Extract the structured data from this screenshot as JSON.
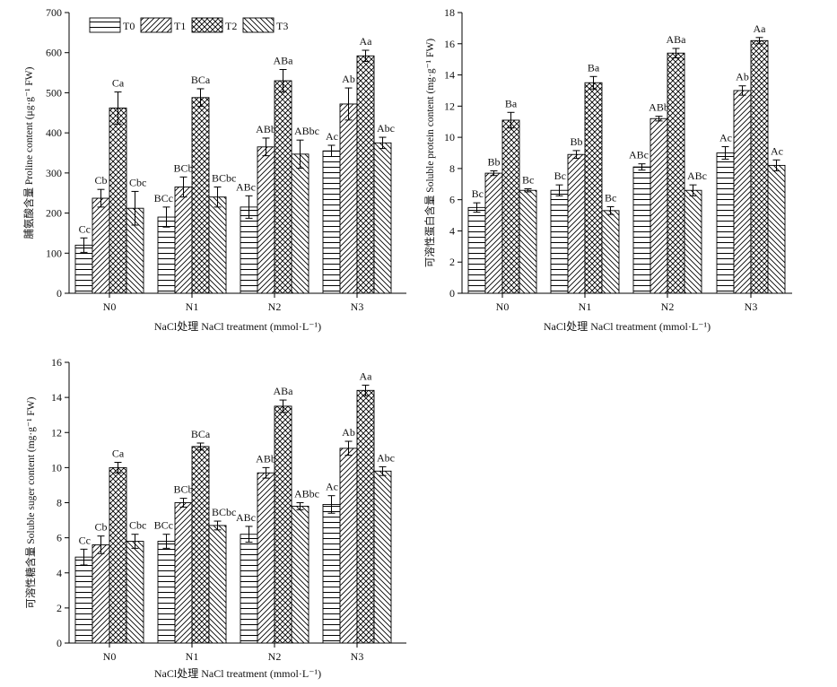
{
  "chart_data": [
    {
      "type": "bar",
      "categories": [
        "N0",
        "N1",
        "N2",
        "N3"
      ],
      "xlabel": "NaCl处理 NaCl treatment (mmol·L⁻¹)",
      "ylabel": "脯氨酸含量 Proline content (μg·g⁻¹ FW)",
      "ylim": [
        0,
        700
      ],
      "yticks": [
        0,
        100,
        200,
        300,
        400,
        500,
        600,
        700
      ],
      "legend": [
        "T0",
        "T1",
        "T2",
        "T3"
      ],
      "legend_position": "top-left",
      "series": [
        {
          "name": "T0",
          "values": [
            120,
            190,
            215,
            355
          ],
          "errors": [
            18,
            25,
            28,
            14
          ],
          "labels": [
            "Cc",
            "BCc",
            "ABc",
            "Ac"
          ]
        },
        {
          "name": "T1",
          "values": [
            237,
            265,
            365,
            472
          ],
          "errors": [
            22,
            25,
            22,
            40
          ],
          "labels": [
            "Cb",
            "BCb",
            "ABb",
            "Ab"
          ]
        },
        {
          "name": "T2",
          "values": [
            462,
            488,
            530,
            592
          ],
          "errors": [
            40,
            22,
            28,
            14
          ],
          "labels": [
            "Ca",
            "BCa",
            "ABa",
            "Aa"
          ]
        },
        {
          "name": "T3",
          "values": [
            212,
            240,
            347,
            375
          ],
          "errors": [
            42,
            25,
            35,
            14
          ],
          "labels": [
            "Cbc",
            "BCbc",
            "ABbc",
            "Abc"
          ]
        }
      ]
    },
    {
      "type": "bar",
      "categories": [
        "N0",
        "N1",
        "N2",
        "N3"
      ],
      "xlabel": "NaCl处理 NaCl treatment (mmol·L⁻¹)",
      "ylabel": "可溶性蛋白含量 Soluble protein content (mg·g⁻¹ FW)",
      "ylim": [
        0,
        18
      ],
      "yticks": [
        0,
        2,
        4,
        6,
        8,
        10,
        12,
        14,
        16,
        18
      ],
      "series": [
        {
          "name": "T0",
          "values": [
            5.5,
            6.6,
            8.1,
            9.0
          ],
          "errors": [
            0.3,
            0.35,
            0.2,
            0.4
          ],
          "labels": [
            "Bc",
            "Bc",
            "ABc",
            "Ac"
          ]
        },
        {
          "name": "T1",
          "values": [
            7.7,
            8.9,
            11.2,
            13.0
          ],
          "errors": [
            0.15,
            0.25,
            0.15,
            0.3
          ],
          "labels": [
            "Bb",
            "Bb",
            "ABb",
            "Ab"
          ]
        },
        {
          "name": "T2",
          "values": [
            11.1,
            13.5,
            15.4,
            16.2
          ],
          "errors": [
            0.5,
            0.4,
            0.3,
            0.2
          ],
          "labels": [
            "Ba",
            "Ba",
            "ABa",
            "Aa"
          ]
        },
        {
          "name": "T3",
          "values": [
            6.6,
            5.3,
            6.6,
            8.2
          ],
          "errors": [
            0.1,
            0.25,
            0.35,
            0.35
          ],
          "labels": [
            "Bc",
            "Bc",
            "ABc",
            "Ac"
          ]
        }
      ]
    },
    {
      "type": "bar",
      "categories": [
        "N0",
        "N1",
        "N2",
        "N3"
      ],
      "xlabel": "NaCl处理 NaCl treatment (mmol·L⁻¹)",
      "ylabel": "可溶性糖含量 Soluble suger content (mg·g⁻¹ FW)",
      "ylim": [
        0,
        16
      ],
      "yticks": [
        0,
        2,
        4,
        6,
        8,
        10,
        12,
        14,
        16
      ],
      "series": [
        {
          "name": "T0",
          "values": [
            4.9,
            5.8,
            6.2,
            7.9
          ],
          "errors": [
            0.45,
            0.4,
            0.45,
            0.5
          ],
          "labels": [
            "Cc",
            "BCc",
            "ABc",
            "Ac"
          ]
        },
        {
          "name": "T1",
          "values": [
            5.6,
            8.0,
            9.7,
            11.1
          ],
          "errors": [
            0.5,
            0.25,
            0.3,
            0.4
          ],
          "labels": [
            "Cb",
            "BCb",
            "ABb",
            "Ab"
          ]
        },
        {
          "name": "T2",
          "values": [
            10.0,
            11.2,
            13.5,
            14.4
          ],
          "errors": [
            0.3,
            0.2,
            0.35,
            0.3
          ],
          "labels": [
            "Ca",
            "BCa",
            "ABa",
            "Aa"
          ]
        },
        {
          "name": "T3",
          "values": [
            5.8,
            6.7,
            7.8,
            9.8
          ],
          "errors": [
            0.4,
            0.25,
            0.2,
            0.25
          ],
          "labels": [
            "Cbc",
            "BCbc",
            "ABbc",
            "Abc"
          ]
        }
      ]
    }
  ]
}
